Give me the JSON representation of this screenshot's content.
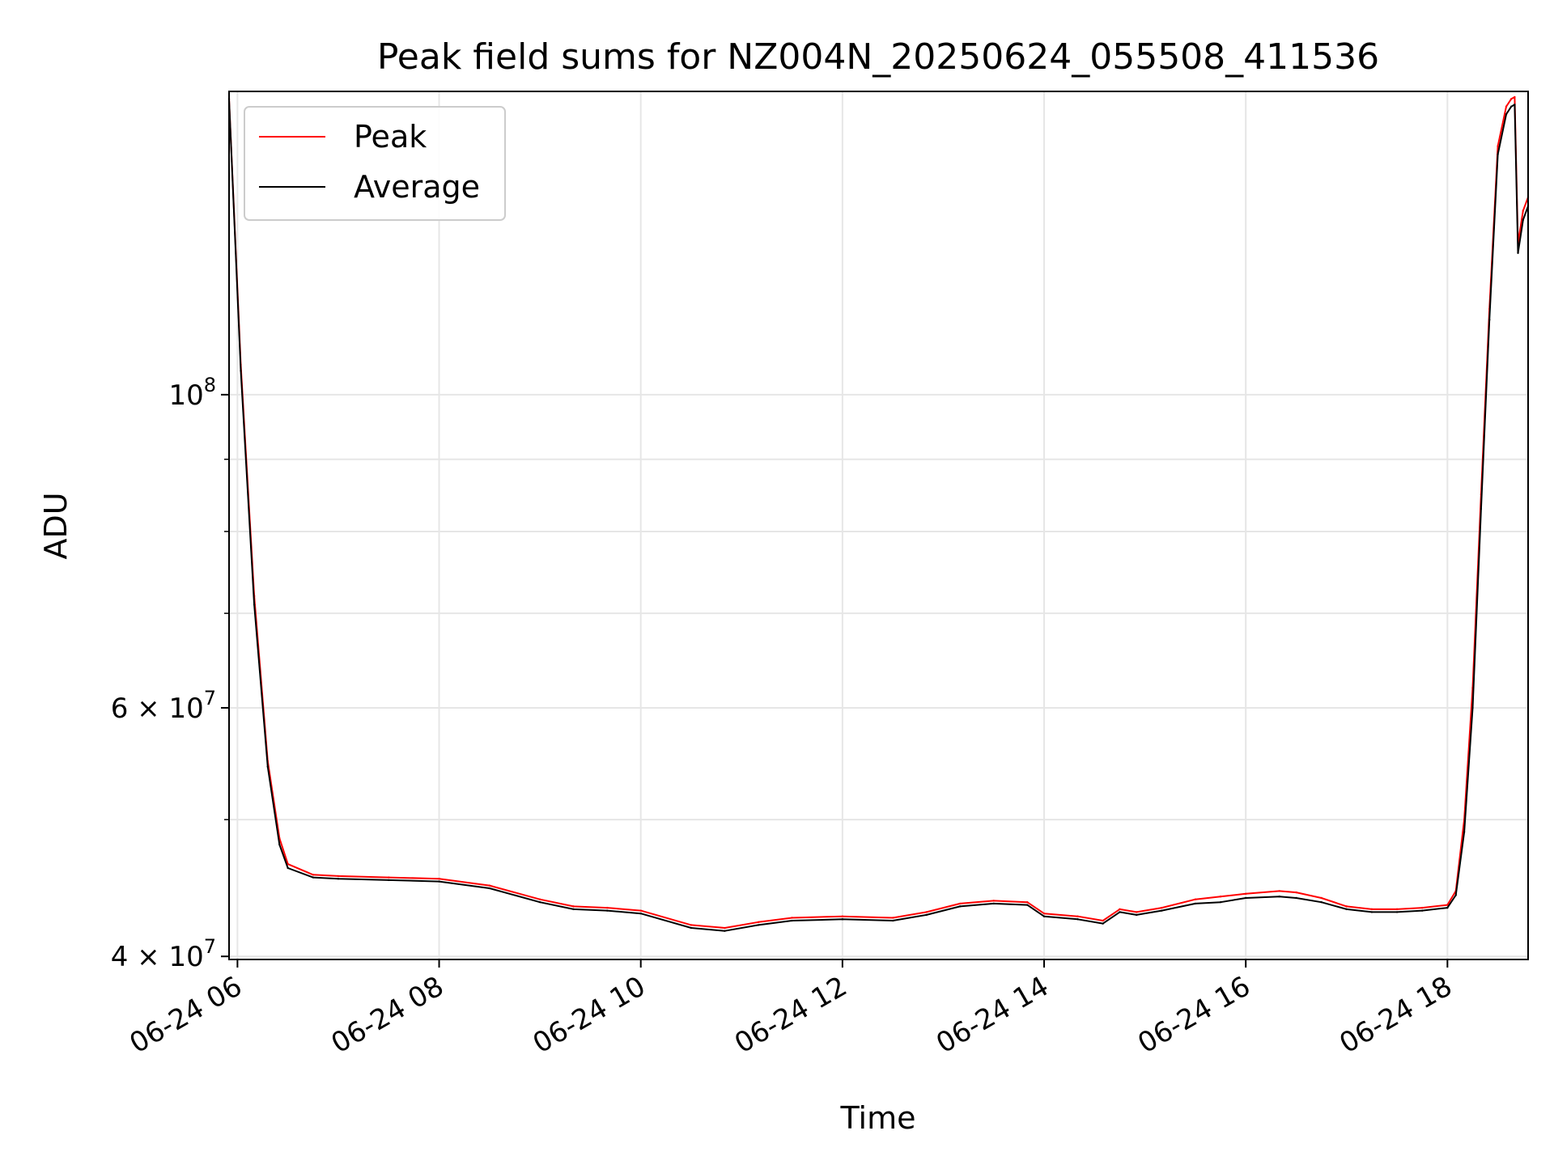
{
  "chart_data": {
    "type": "line",
    "title": "Peak field sums for NZ004N_20250624_055508_411536",
    "xlabel": "Time",
    "ylabel": "ADU",
    "y_scale": "log",
    "ylim": [
      39800000,
      164000000
    ],
    "xlim": [
      "2025-06-24 05:55",
      "2025-06-24 18:48"
    ],
    "grid": true,
    "legend": {
      "location": "upper-left",
      "entries": [
        "Peak",
        "Average"
      ]
    },
    "x_ticks": [
      {
        "value": "2025-06-24 06:00",
        "label": "06-24 06"
      },
      {
        "value": "2025-06-24 08:00",
        "label": "06-24 08"
      },
      {
        "value": "2025-06-24 10:00",
        "label": "06-24 10"
      },
      {
        "value": "2025-06-24 12:00",
        "label": "06-24 12"
      },
      {
        "value": "2025-06-24 14:00",
        "label": "06-24 14"
      },
      {
        "value": "2025-06-24 16:00",
        "label": "06-24 16"
      },
      {
        "value": "2025-06-24 18:00",
        "label": "06-24 18"
      }
    ],
    "y_ticks": [
      {
        "value": 40000000,
        "base": "4 × 10",
        "exp": "7"
      },
      {
        "value": 60000000,
        "base": "6 × 10",
        "exp": "7"
      },
      {
        "value": 100000000,
        "base": "10",
        "exp": "8"
      }
    ],
    "y_minor_ticks": [
      50000000,
      70000000,
      80000000,
      90000000
    ],
    "series": [
      {
        "name": "Peak",
        "color": "#ff0000",
        "x": [
          "2025-06-24 05:55",
          "2025-06-24 06:02",
          "2025-06-24 06:10",
          "2025-06-24 06:18",
          "2025-06-24 06:25",
          "2025-06-24 06:30",
          "2025-06-24 06:45",
          "2025-06-24 07:00",
          "2025-06-24 07:30",
          "2025-06-24 08:00",
          "2025-06-24 08:30",
          "2025-06-24 09:00",
          "2025-06-24 09:20",
          "2025-06-24 09:40",
          "2025-06-24 10:00",
          "2025-06-24 10:30",
          "2025-06-24 10:50",
          "2025-06-24 11:10",
          "2025-06-24 11:30",
          "2025-06-24 12:00",
          "2025-06-24 12:30",
          "2025-06-24 12:50",
          "2025-06-24 13:10",
          "2025-06-24 13:30",
          "2025-06-24 13:50",
          "2025-06-24 14:00",
          "2025-06-24 14:20",
          "2025-06-24 14:35",
          "2025-06-24 14:45",
          "2025-06-24 14:55",
          "2025-06-24 15:10",
          "2025-06-24 15:30",
          "2025-06-24 15:45",
          "2025-06-24 16:00",
          "2025-06-24 16:20",
          "2025-06-24 16:30",
          "2025-06-24 16:45",
          "2025-06-24 17:00",
          "2025-06-24 17:15",
          "2025-06-24 17:30",
          "2025-06-24 17:45",
          "2025-06-24 18:00",
          "2025-06-24 18:05",
          "2025-06-24 18:10",
          "2025-06-24 18:15",
          "2025-06-24 18:20",
          "2025-06-24 18:25",
          "2025-06-24 18:30",
          "2025-06-24 18:35",
          "2025-06-24 18:38",
          "2025-06-24 18:40",
          "2025-06-24 18:42",
          "2025-06-24 18:45",
          "2025-06-24 18:48"
        ],
        "y": [
          162000000,
          105000000,
          72000000,
          55000000,
          48500000,
          46500000,
          45700000,
          45600000,
          45500000,
          45400000,
          44900000,
          43900000,
          43400000,
          43300000,
          43100000,
          42100000,
          41900000,
          42300000,
          42600000,
          42700000,
          42600000,
          43000000,
          43600000,
          43800000,
          43700000,
          42900000,
          42700000,
          42400000,
          43200000,
          43000000,
          43300000,
          43900000,
          44100000,
          44300000,
          44500000,
          44400000,
          44000000,
          43400000,
          43200000,
          43200000,
          43300000,
          43500000,
          44500000,
          50000000,
          62000000,
          85000000,
          115000000,
          150000000,
          160000000,
          162000000,
          162500000,
          128000000,
          135000000,
          138000000
        ]
      },
      {
        "name": "Average",
        "color": "#000000",
        "x": [
          "2025-06-24 05:55",
          "2025-06-24 06:02",
          "2025-06-24 06:10",
          "2025-06-24 06:18",
          "2025-06-24 06:25",
          "2025-06-24 06:30",
          "2025-06-24 06:45",
          "2025-06-24 07:00",
          "2025-06-24 07:30",
          "2025-06-24 08:00",
          "2025-06-24 08:30",
          "2025-06-24 09:00",
          "2025-06-24 09:20",
          "2025-06-24 09:40",
          "2025-06-24 10:00",
          "2025-06-24 10:30",
          "2025-06-24 10:50",
          "2025-06-24 11:10",
          "2025-06-24 11:30",
          "2025-06-24 12:00",
          "2025-06-24 12:30",
          "2025-06-24 12:50",
          "2025-06-24 13:10",
          "2025-06-24 13:30",
          "2025-06-24 13:50",
          "2025-06-24 14:00",
          "2025-06-24 14:20",
          "2025-06-24 14:35",
          "2025-06-24 14:45",
          "2025-06-24 14:55",
          "2025-06-24 15:10",
          "2025-06-24 15:30",
          "2025-06-24 15:45",
          "2025-06-24 16:00",
          "2025-06-24 16:20",
          "2025-06-24 16:30",
          "2025-06-24 16:45",
          "2025-06-24 17:00",
          "2025-06-24 17:15",
          "2025-06-24 17:30",
          "2025-06-24 17:45",
          "2025-06-24 18:00",
          "2025-06-24 18:05",
          "2025-06-24 18:10",
          "2025-06-24 18:15",
          "2025-06-24 18:20",
          "2025-06-24 18:25",
          "2025-06-24 18:30",
          "2025-06-24 18:35",
          "2025-06-24 18:38",
          "2025-06-24 18:40",
          "2025-06-24 18:42",
          "2025-06-24 18:45",
          "2025-06-24 18:48"
        ],
        "y": [
          162000000,
          104000000,
          71000000,
          54500000,
          48000000,
          46200000,
          45500000,
          45400000,
          45300000,
          45200000,
          44700000,
          43700000,
          43200000,
          43100000,
          42900000,
          41900000,
          41700000,
          42100000,
          42400000,
          42500000,
          42400000,
          42800000,
          43400000,
          43600000,
          43500000,
          42700000,
          42500000,
          42200000,
          43000000,
          42800000,
          43100000,
          43600000,
          43700000,
          44000000,
          44100000,
          44000000,
          43700000,
          43200000,
          43000000,
          43000000,
          43100000,
          43300000,
          44200000,
          49000000,
          60000000,
          83000000,
          113000000,
          148000000,
          158000000,
          160000000,
          160500000,
          126000000,
          133000000,
          136000000
        ]
      }
    ]
  }
}
